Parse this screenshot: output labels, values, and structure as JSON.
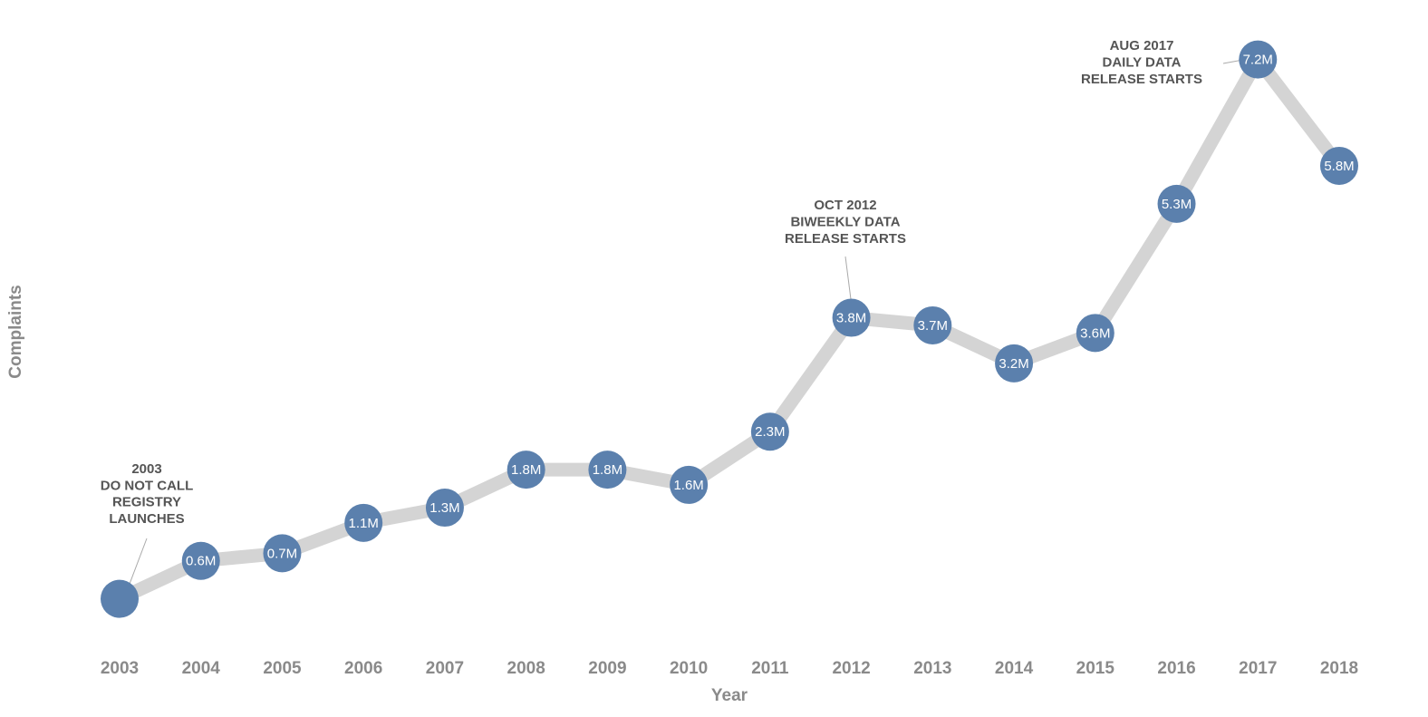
{
  "chart_data": {
    "type": "line",
    "x_label": "Year",
    "y_label": "Complaints",
    "categories": [
      "2003",
      "2004",
      "2005",
      "2006",
      "2007",
      "2008",
      "2009",
      "2010",
      "2011",
      "2012",
      "2013",
      "2014",
      "2015",
      "2016",
      "2017",
      "2018"
    ],
    "series": [
      {
        "name": "Complaints",
        "color": "#5b80ad",
        "line_color": "#d4d4d4",
        "values": [
          0.1,
          0.6,
          0.7,
          1.1,
          1.3,
          1.8,
          1.8,
          1.6,
          2.3,
          3.8,
          3.7,
          3.2,
          3.6,
          5.3,
          7.2,
          5.8
        ],
        "value_labels": [
          null,
          "0.6M",
          "0.7M",
          "1.1M",
          "1.3M",
          "1.8M",
          "1.8M",
          "1.6M",
          "2.3M",
          "3.8M",
          "3.7M",
          "3.2M",
          "3.6M",
          "5.3M",
          "7.2M",
          "5.8M"
        ]
      }
    ],
    "ylim": [
      0,
      7.5
    ],
    "annotations": [
      {
        "lines": [
          "2003",
          "DO NOT CALL",
          "REGISTRY",
          "LAUNCHES"
        ]
      },
      {
        "lines": [
          "OCT 2012",
          "BIWEEKLY DATA",
          "RELEASE STARTS"
        ]
      },
      {
        "lines": [
          "AUG 2017",
          "DAILY DATA",
          "RELEASE STARTS"
        ]
      }
    ]
  }
}
